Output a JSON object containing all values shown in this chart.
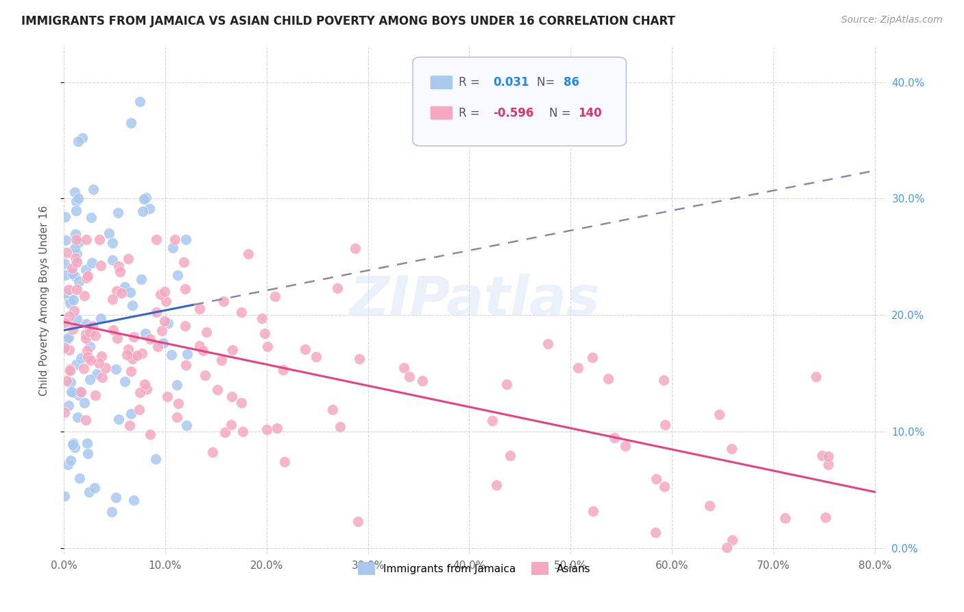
{
  "title": "IMMIGRANTS FROM JAMAICA VS ASIAN CHILD POVERTY AMONG BOYS UNDER 16 CORRELATION CHART",
  "source": "Source: ZipAtlas.com",
  "ylabel": "Child Poverty Among Boys Under 16",
  "watermark": "ZIPatlas",
  "blue_R": 0.031,
  "blue_N": 86,
  "pink_R": -0.596,
  "pink_N": 140,
  "xlim": [
    0.0,
    0.81
  ],
  "ylim": [
    -0.005,
    0.43
  ],
  "xticks": [
    0.0,
    0.1,
    0.2,
    0.3,
    0.4,
    0.5,
    0.6,
    0.7,
    0.8
  ],
  "yticks": [
    0.0,
    0.1,
    0.2,
    0.3,
    0.4
  ],
  "blue_dot_color": "#a8c8f0",
  "pink_dot_color": "#f5a8c0",
  "blue_line_color": "#3366cc",
  "pink_line_color": "#e84080",
  "dashed_line_color": "#8888aa",
  "legend_box_color": "#f0f4ff",
  "legend_border_color": "#aabbcc"
}
